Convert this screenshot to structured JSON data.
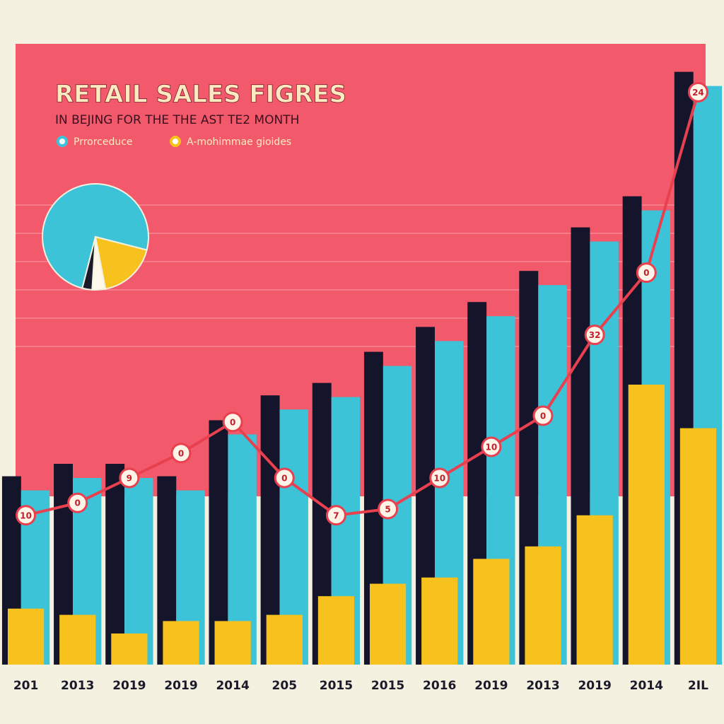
{
  "chart_data": [
    {
      "type": "bar",
      "title": "RETAIL SALES FIGRES",
      "subtitle": "IN BEJING FOR THE THE AST TE2 MONTH",
      "categories": [
        "201",
        "2013",
        "2019",
        "2019",
        "2014",
        "205",
        "2015",
        "2015",
        "2016",
        "2019",
        "2013",
        "2019",
        "2014",
        "2IL"
      ],
      "series": [
        {
          "name": "Prrorceduce",
          "color": "#3cc3d8",
          "values": [
            28,
            30,
            30,
            28,
            37,
            41,
            43,
            48,
            52,
            56,
            61,
            68,
            73,
            93
          ]
        },
        {
          "name": "A-mohimmae gioides",
          "color": "#f7c21e",
          "values": [
            9,
            8,
            5,
            7,
            7,
            8,
            11,
            13,
            14,
            17,
            19,
            24,
            45,
            38
          ]
        },
        {
          "type": "line",
          "color": "#e8404f",
          "values": [
            24,
            26,
            30,
            34,
            39,
            30,
            24,
            25,
            30,
            35,
            40,
            53,
            63,
            92
          ]
        }
      ],
      "annotations": [
        "10",
        "0",
        "9",
        "0",
        "0",
        "0",
        "7",
        "5",
        "10",
        "10",
        "0",
        "32",
        "0",
        "24"
      ],
      "ylim": [
        0,
        100
      ]
    },
    {
      "type": "pie",
      "values": [
        75,
        18,
        4,
        3
      ],
      "colors": [
        "#3cc3d8",
        "#f7c21e",
        "#fdf8ea",
        "#1a1a2a"
      ]
    }
  ]
}
